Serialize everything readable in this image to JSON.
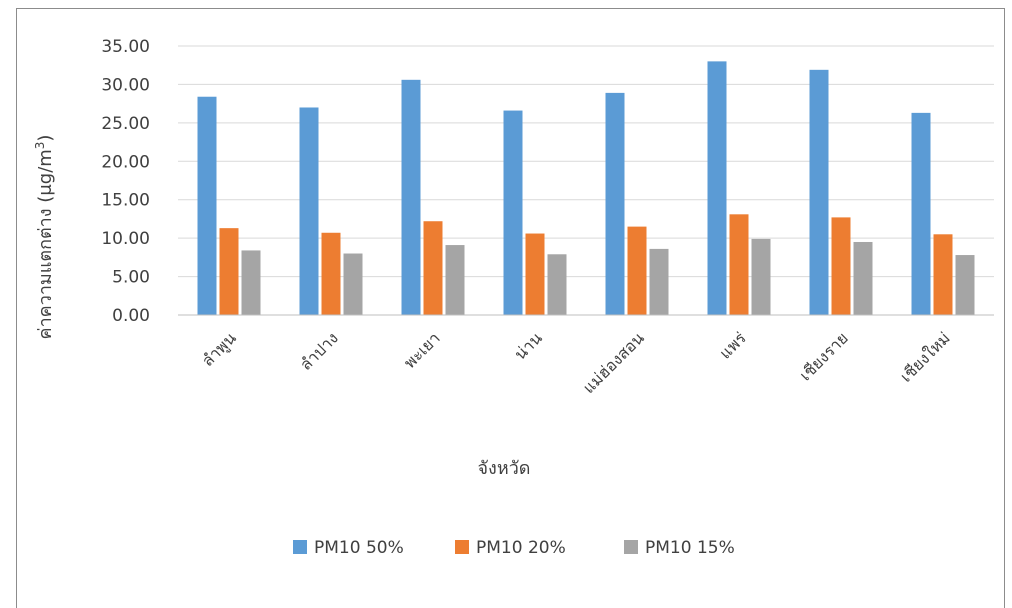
{
  "chart_data": {
    "type": "bar",
    "title": "",
    "xlabel": "จังหวัด",
    "ylabel": "ค่าความแตกต่าง (μg/m",
    "ylabel_sup": "3",
    "ylabel_close": ")",
    "ylim": [
      0,
      35
    ],
    "yticks": [
      "0.00",
      "5.00",
      "10.00",
      "15.00",
      "20.00",
      "25.00",
      "30.00",
      "35.00"
    ],
    "grid": true,
    "legend_position": "bottom",
    "categories": [
      "ลำพูน",
      "ลำปาง",
      "พะเยา",
      "น่าน",
      "แม่ฮ่องสอน",
      "แพร่",
      "เชียงราย",
      "เชียงใหม่"
    ],
    "series": [
      {
        "name": "PM10 50%",
        "color": "#5b9bd5",
        "values": [
          28.4,
          27.0,
          30.6,
          26.6,
          28.9,
          33.0,
          31.9,
          26.3
        ]
      },
      {
        "name": "PM10 20%",
        "color": "#ed7d31",
        "values": [
          11.3,
          10.7,
          12.2,
          10.6,
          11.5,
          13.1,
          12.7,
          10.5
        ]
      },
      {
        "name": "PM10 15%",
        "color": "#a5a5a5",
        "values": [
          8.4,
          8.0,
          9.1,
          7.9,
          8.6,
          9.9,
          9.5,
          7.8
        ]
      }
    ]
  }
}
